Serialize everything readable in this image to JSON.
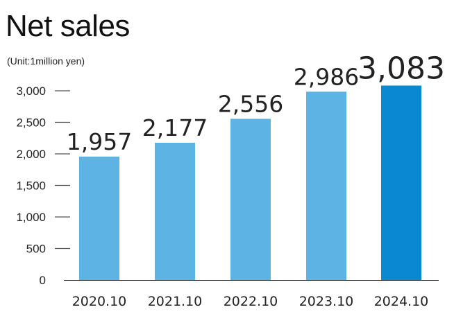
{
  "header": {
    "title": "Net sales",
    "unit": "(Unit:1million yen)"
  },
  "colors": {
    "bar": "#5db3e3",
    "highlight_bar": "#0a89d2",
    "tick_line": "#555555"
  },
  "chart_data": {
    "type": "bar",
    "title": "Net sales",
    "ylabel": "(Unit:1million yen)",
    "categories": [
      "2020.10",
      "2021.10",
      "2022.10",
      "2023.10",
      "2024.10"
    ],
    "values": [
      1957,
      2177,
      2556,
      2986,
      3083
    ],
    "value_labels": [
      "1,957",
      "2,177",
      "2,556",
      "2,986",
      "3,083"
    ],
    "ylim": [
      0,
      3000
    ],
    "yticks": [
      0,
      500,
      1000,
      1500,
      2000,
      2500,
      3000
    ],
    "ytick_labels": [
      "0",
      "500",
      "1,000",
      "1,500",
      "2,000",
      "2,500",
      "3,000"
    ],
    "highlight_index": 4,
    "grid": false,
    "legend": "none"
  }
}
